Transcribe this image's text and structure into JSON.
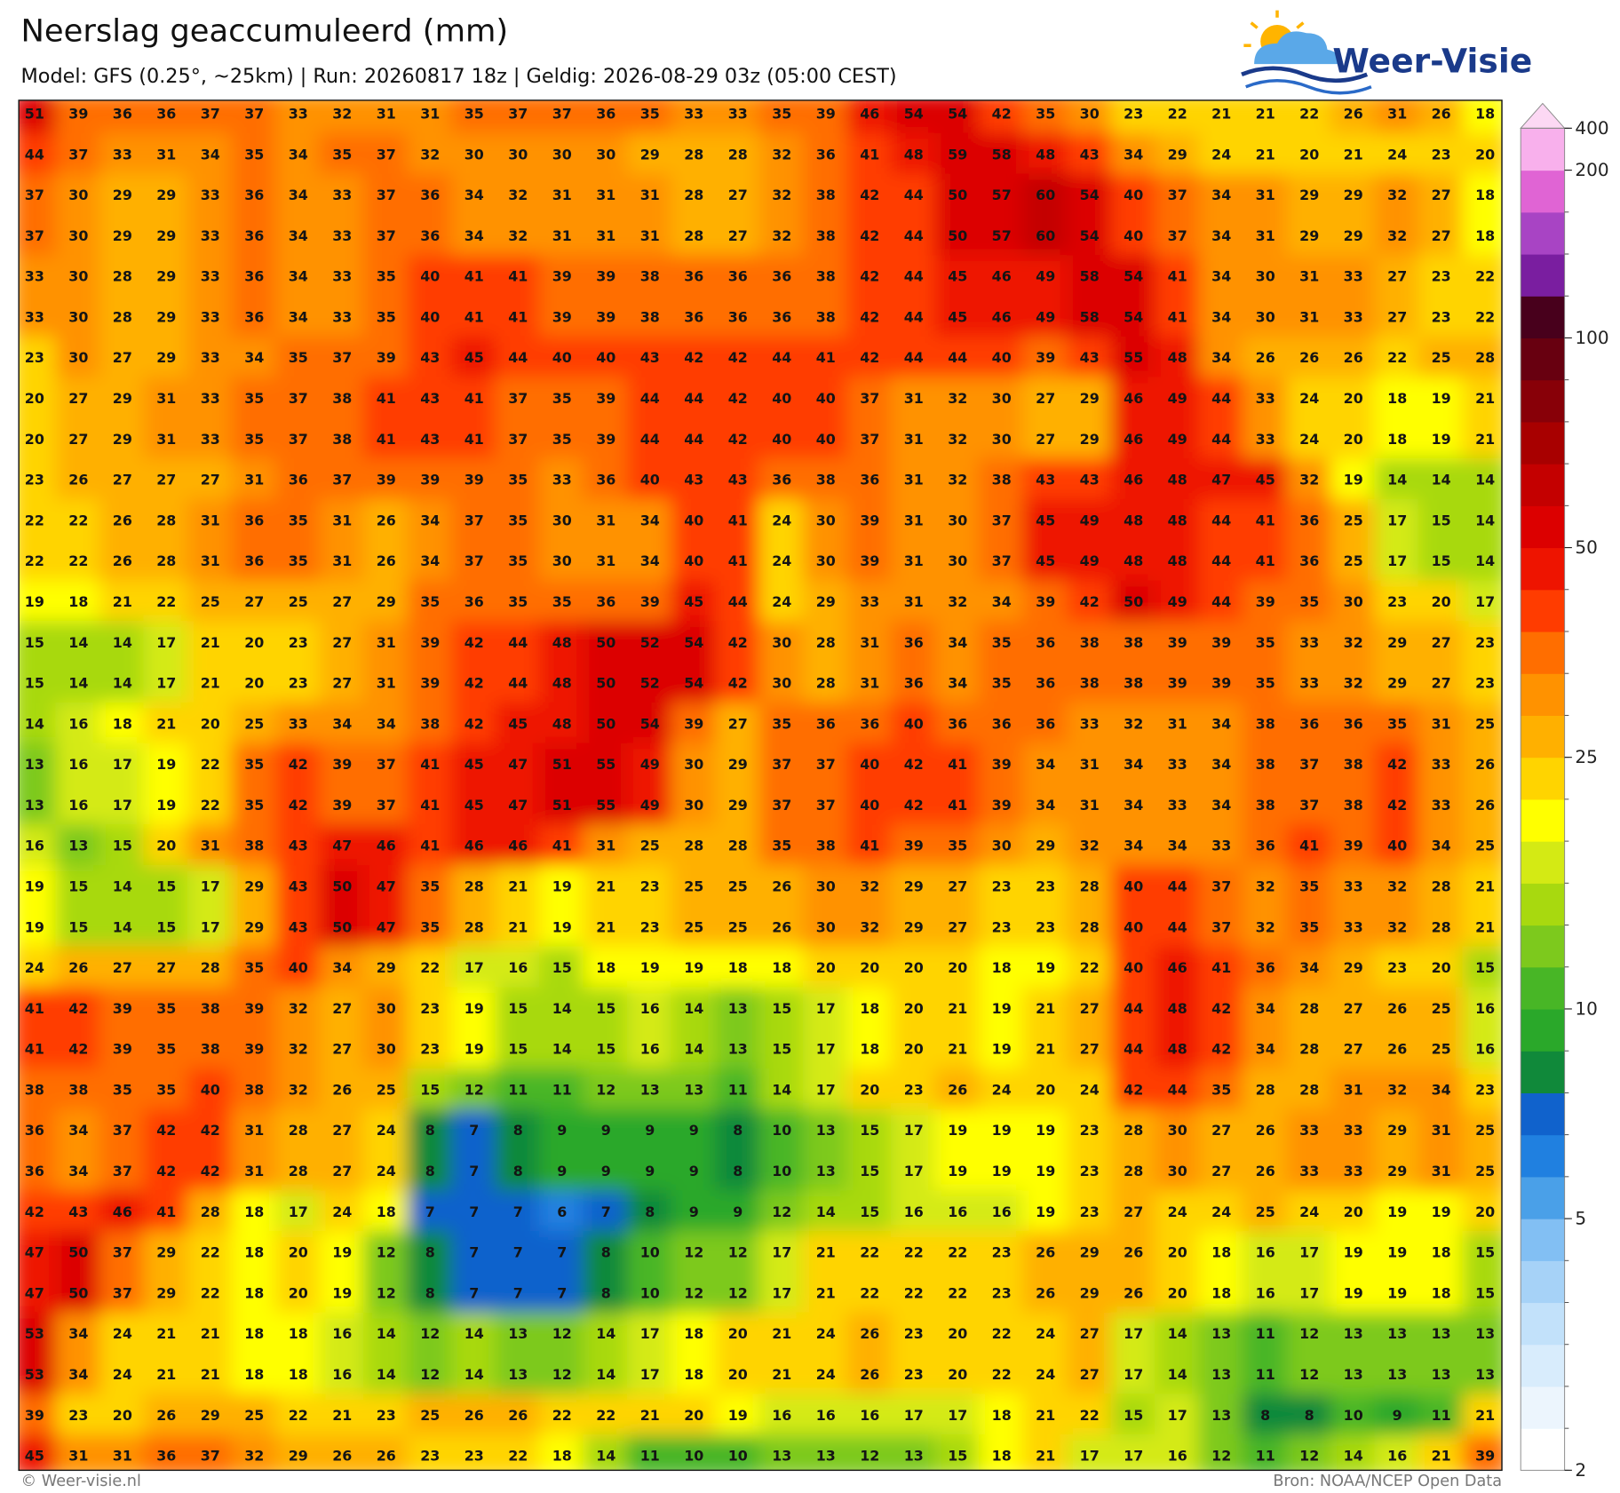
{
  "map": {
    "title": "Neerslag geaccumuleerd (mm)",
    "subtitle": "Model: GFS (0.25°, ~25km)  |  Run: 20260817 18z  |  Geldig: 2026-08-29 03z (05:00 CEST)",
    "logo_text": "Weer-Visie",
    "footer_left": "© Weer-visie.nl",
    "footer_right": "Bron: NOAA/NCEP Open Data",
    "grid": [
      [
        51,
        39,
        36,
        36,
        37,
        37,
        33,
        32,
        31,
        31,
        35,
        37,
        37,
        36,
        35,
        33,
        33,
        35,
        39,
        46,
        54,
        54,
        42,
        35,
        30,
        23,
        22,
        21,
        21,
        22,
        26,
        31,
        26,
        18
      ],
      [
        44,
        37,
        33,
        31,
        34,
        35,
        34,
        35,
        37,
        32,
        30,
        30,
        30,
        30,
        29,
        28,
        28,
        32,
        36,
        41,
        48,
        59,
        58,
        48,
        43,
        34,
        29,
        24,
        21,
        20,
        21,
        24,
        23,
        20
      ],
      [
        37,
        30,
        29,
        29,
        33,
        36,
        34,
        33,
        37,
        36,
        34,
        32,
        31,
        31,
        31,
        28,
        27,
        32,
        38,
        42,
        44,
        50,
        57,
        60,
        54,
        40,
        37,
        34,
        31,
        29,
        29,
        32,
        27,
        18
      ],
      [
        37,
        30,
        29,
        29,
        33,
        36,
        34,
        33,
        37,
        36,
        34,
        32,
        31,
        31,
        31,
        28,
        27,
        32,
        38,
        42,
        44,
        50,
        57,
        60,
        54,
        40,
        37,
        34,
        31,
        29,
        29,
        32,
        27,
        18
      ],
      [
        33,
        30,
        28,
        29,
        33,
        36,
        34,
        33,
        35,
        40,
        41,
        41,
        39,
        39,
        38,
        36,
        36,
        36,
        38,
        42,
        44,
        45,
        46,
        49,
        58,
        54,
        41,
        34,
        30,
        31,
        33,
        27,
        23,
        22
      ],
      [
        33,
        30,
        28,
        29,
        33,
        36,
        34,
        33,
        35,
        40,
        41,
        41,
        39,
        39,
        38,
        36,
        36,
        36,
        38,
        42,
        44,
        45,
        46,
        49,
        58,
        54,
        41,
        34,
        30,
        31,
        33,
        27,
        23,
        22
      ],
      [
        23,
        30,
        27,
        29,
        33,
        34,
        35,
        37,
        39,
        43,
        45,
        44,
        40,
        40,
        43,
        42,
        42,
        44,
        41,
        42,
        44,
        44,
        40,
        39,
        43,
        55,
        48,
        34,
        26,
        26,
        26,
        22,
        25,
        28
      ],
      [
        20,
        27,
        29,
        31,
        33,
        35,
        37,
        38,
        41,
        43,
        41,
        37,
        35,
        39,
        44,
        44,
        42,
        40,
        40,
        37,
        31,
        32,
        30,
        27,
        29,
        46,
        49,
        44,
        33,
        24,
        20,
        18,
        19,
        21
      ],
      [
        20,
        27,
        29,
        31,
        33,
        35,
        37,
        38,
        41,
        43,
        41,
        37,
        35,
        39,
        44,
        44,
        42,
        40,
        40,
        37,
        31,
        32,
        30,
        27,
        29,
        46,
        49,
        44,
        33,
        24,
        20,
        18,
        19,
        21
      ],
      [
        23,
        26,
        27,
        27,
        27,
        31,
        36,
        37,
        39,
        39,
        39,
        35,
        33,
        36,
        40,
        43,
        43,
        36,
        38,
        36,
        31,
        32,
        38,
        43,
        43,
        46,
        48,
        47,
        45,
        32,
        19,
        14,
        14,
        14
      ],
      [
        22,
        22,
        26,
        28,
        31,
        36,
        35,
        31,
        26,
        34,
        37,
        35,
        30,
        31,
        34,
        40,
        41,
        24,
        30,
        39,
        31,
        30,
        37,
        45,
        49,
        48,
        48,
        44,
        41,
        36,
        25,
        17,
        15,
        14
      ],
      [
        22,
        22,
        26,
        28,
        31,
        36,
        35,
        31,
        26,
        34,
        37,
        35,
        30,
        31,
        34,
        40,
        41,
        24,
        30,
        39,
        31,
        30,
        37,
        45,
        49,
        48,
        48,
        44,
        41,
        36,
        25,
        17,
        15,
        14
      ],
      [
        19,
        18,
        21,
        22,
        25,
        27,
        25,
        27,
        29,
        35,
        36,
        35,
        35,
        36,
        39,
        45,
        44,
        24,
        29,
        33,
        31,
        32,
        34,
        39,
        42,
        50,
        49,
        44,
        39,
        35,
        30,
        23,
        20,
        17
      ],
      [
        15,
        14,
        14,
        17,
        21,
        20,
        23,
        27,
        31,
        39,
        42,
        44,
        48,
        50,
        52,
        54,
        42,
        30,
        28,
        31,
        36,
        34,
        35,
        36,
        38,
        38,
        39,
        39,
        35,
        33,
        32,
        29,
        27,
        23
      ],
      [
        15,
        14,
        14,
        17,
        21,
        20,
        23,
        27,
        31,
        39,
        42,
        44,
        48,
        50,
        52,
        54,
        42,
        30,
        28,
        31,
        36,
        34,
        35,
        36,
        38,
        38,
        39,
        39,
        35,
        33,
        32,
        29,
        27,
        23
      ],
      [
        14,
        16,
        18,
        21,
        20,
        25,
        33,
        34,
        34,
        38,
        42,
        45,
        48,
        50,
        54,
        39,
        27,
        35,
        36,
        36,
        40,
        36,
        36,
        36,
        33,
        32,
        31,
        34,
        38,
        36,
        36,
        35,
        31,
        25
      ],
      [
        13,
        16,
        17,
        19,
        22,
        35,
        42,
        39,
        37,
        41,
        45,
        47,
        51,
        55,
        49,
        30,
        29,
        37,
        37,
        40,
        42,
        41,
        39,
        34,
        31,
        34,
        33,
        34,
        38,
        37,
        38,
        42,
        33,
        26
      ],
      [
        13,
        16,
        17,
        19,
        22,
        35,
        42,
        39,
        37,
        41,
        45,
        47,
        51,
        55,
        49,
        30,
        29,
        37,
        37,
        40,
        42,
        41,
        39,
        34,
        31,
        34,
        33,
        34,
        38,
        37,
        38,
        42,
        33,
        26
      ],
      [
        16,
        13,
        15,
        20,
        31,
        38,
        43,
        47,
        46,
        41,
        46,
        46,
        41,
        31,
        25,
        28,
        28,
        35,
        38,
        41,
        39,
        35,
        30,
        29,
        32,
        34,
        34,
        33,
        36,
        41,
        39,
        40,
        34,
        25
      ],
      [
        19,
        15,
        14,
        15,
        17,
        29,
        43,
        50,
        47,
        35,
        28,
        21,
        19,
        21,
        23,
        25,
        25,
        26,
        30,
        32,
        29,
        27,
        23,
        23,
        28,
        40,
        44,
        37,
        32,
        35,
        33,
        32,
        28,
        21
      ],
      [
        19,
        15,
        14,
        15,
        17,
        29,
        43,
        50,
        47,
        35,
        28,
        21,
        19,
        21,
        23,
        25,
        25,
        26,
        30,
        32,
        29,
        27,
        23,
        23,
        28,
        40,
        44,
        37,
        32,
        35,
        33,
        32,
        28,
        21
      ],
      [
        24,
        26,
        27,
        27,
        28,
        35,
        40,
        34,
        29,
        22,
        17,
        16,
        15,
        18,
        19,
        19,
        18,
        18,
        20,
        20,
        20,
        20,
        18,
        19,
        22,
        40,
        46,
        41,
        36,
        34,
        29,
        23,
        20,
        15
      ],
      [
        41,
        42,
        39,
        35,
        38,
        39,
        32,
        27,
        30,
        23,
        19,
        15,
        14,
        15,
        16,
        14,
        13,
        15,
        17,
        18,
        20,
        21,
        19,
        21,
        27,
        44,
        48,
        42,
        34,
        28,
        27,
        26,
        25,
        16
      ],
      [
        41,
        42,
        39,
        35,
        38,
        39,
        32,
        27,
        30,
        23,
        19,
        15,
        14,
        15,
        16,
        14,
        13,
        15,
        17,
        18,
        20,
        21,
        19,
        21,
        27,
        44,
        48,
        42,
        34,
        28,
        27,
        26,
        25,
        16
      ],
      [
        38,
        38,
        35,
        35,
        40,
        38,
        32,
        26,
        25,
        15,
        12,
        11,
        11,
        12,
        13,
        13,
        11,
        14,
        17,
        20,
        23,
        26,
        24,
        20,
        24,
        42,
        44,
        35,
        28,
        28,
        31,
        32,
        34,
        23
      ],
      [
        36,
        34,
        37,
        42,
        42,
        31,
        28,
        27,
        24,
        8,
        7,
        8,
        9,
        9,
        9,
        9,
        8,
        10,
        13,
        15,
        17,
        19,
        19,
        19,
        23,
        28,
        30,
        27,
        26,
        33,
        33,
        29,
        31,
        25
      ],
      [
        36,
        34,
        37,
        42,
        42,
        31,
        28,
        27,
        24,
        8,
        7,
        8,
        9,
        9,
        9,
        9,
        8,
        10,
        13,
        15,
        17,
        19,
        19,
        19,
        23,
        28,
        30,
        27,
        26,
        33,
        33,
        29,
        31,
        25
      ],
      [
        42,
        43,
        46,
        41,
        28,
        18,
        17,
        24,
        18,
        7,
        7,
        7,
        6,
        7,
        8,
        9,
        9,
        12,
        14,
        15,
        16,
        16,
        16,
        19,
        23,
        27,
        24,
        24,
        25,
        24,
        20,
        19,
        19,
        20
      ],
      [
        47,
        50,
        37,
        29,
        22,
        18,
        20,
        19,
        12,
        8,
        7,
        7,
        7,
        8,
        10,
        12,
        12,
        17,
        21,
        22,
        22,
        22,
        23,
        26,
        29,
        26,
        20,
        18,
        16,
        17,
        19,
        19,
        18,
        15
      ],
      [
        47,
        50,
        37,
        29,
        22,
        18,
        20,
        19,
        12,
        8,
        7,
        7,
        7,
        8,
        10,
        12,
        12,
        17,
        21,
        22,
        22,
        22,
        23,
        26,
        29,
        26,
        20,
        18,
        16,
        17,
        19,
        19,
        18,
        15
      ],
      [
        53,
        34,
        24,
        21,
        21,
        18,
        18,
        16,
        14,
        12,
        14,
        13,
        12,
        14,
        17,
        18,
        20,
        21,
        24,
        26,
        23,
        20,
        22,
        24,
        27,
        17,
        14,
        13,
        11,
        12,
        13,
        13,
        13,
        13
      ],
      [
        53,
        34,
        24,
        21,
        21,
        18,
        18,
        16,
        14,
        12,
        14,
        13,
        12,
        14,
        17,
        18,
        20,
        21,
        24,
        26,
        23,
        20,
        22,
        24,
        27,
        17,
        14,
        13,
        11,
        12,
        13,
        13,
        13,
        13
      ],
      [
        39,
        23,
        20,
        26,
        29,
        25,
        22,
        21,
        23,
        25,
        26,
        26,
        22,
        22,
        21,
        20,
        19,
        16,
        16,
        16,
        17,
        17,
        18,
        21,
        22,
        15,
        17,
        13,
        8,
        8,
        10,
        9,
        11,
        21
      ],
      [
        45,
        31,
        31,
        36,
        37,
        32,
        29,
        26,
        26,
        23,
        23,
        22,
        18,
        14,
        11,
        10,
        10,
        13,
        13,
        12,
        13,
        15,
        18,
        21,
        17,
        17,
        16,
        12,
        11,
        12,
        14,
        16,
        21,
        39
      ]
    ],
    "colorbar": {
      "levels": [
        2,
        2.5,
        3,
        3.5,
        4,
        4.5,
        5,
        6,
        7,
        8,
        9,
        10,
        12,
        14,
        16,
        18,
        20,
        25,
        30,
        35,
        40,
        45,
        50,
        60,
        70,
        80,
        90,
        100,
        125,
        150,
        175,
        200,
        400
      ],
      "colors": [
        "#ffffff",
        "#ecf5fd",
        "#d8ecfc",
        "#c2e1fa",
        "#a6d2f7",
        "#82bff3",
        "#4aa0e8",
        "#2080e0",
        "#1062cc",
        "#10893a",
        "#2aa82a",
        "#48b626",
        "#7dc91d",
        "#a8d90f",
        "#d4ea14",
        "#ffff00",
        "#ffd400",
        "#ffb000",
        "#ff9200",
        "#ff6e00",
        "#ff3c00",
        "#ee1400",
        "#dc0000",
        "#c40000",
        "#a80000",
        "#880008",
        "#680010",
        "#48001c",
        "#7a1ea0",
        "#a844c4",
        "#e064d4",
        "#f8b0ec"
      ],
      "extend_color": "#fcd8f4",
      "ticks": [
        2,
        5,
        10,
        25,
        50,
        100,
        200,
        400
      ]
    }
  }
}
